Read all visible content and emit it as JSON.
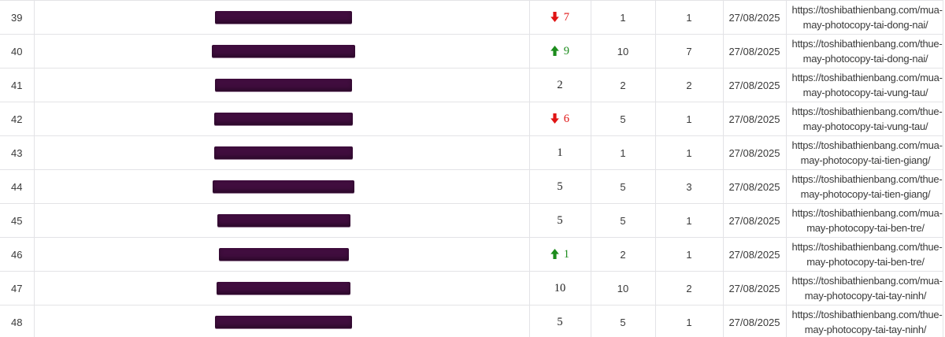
{
  "colors": {
    "up_green": "#1c8c1c",
    "down_red": "#e01313",
    "redaction_purple": "#400d3e",
    "grid_border": "#e3e3e6",
    "text": "#3a3a3a"
  },
  "table": {
    "rows": [
      {
        "num": "39",
        "change": {
          "dir": "down",
          "value": "7"
        },
        "pos_a": "1",
        "pos_b": "1",
        "date": "27/08/2025",
        "url_line1": "https://toshibathienbang.com/mua-",
        "url_line2": "may-photocopy-tai-dong-nai/",
        "redact_width": 174
      },
      {
        "num": "40",
        "change": {
          "dir": "up",
          "value": "9"
        },
        "pos_a": "10",
        "pos_b": "7",
        "date": "27/08/2025",
        "url_line1": "https://toshibathienbang.com/thue-",
        "url_line2": "may-photocopy-tai-dong-nai/",
        "redact_width": 182
      },
      {
        "num": "41",
        "change": {
          "dir": "none",
          "value": "2"
        },
        "pos_a": "2",
        "pos_b": "2",
        "date": "27/08/2025",
        "url_line1": "https://toshibathienbang.com/mua-",
        "url_line2": "may-photocopy-tai-vung-tau/",
        "redact_width": 174
      },
      {
        "num": "42",
        "change": {
          "dir": "down",
          "value": "6"
        },
        "pos_a": "5",
        "pos_b": "1",
        "date": "27/08/2025",
        "url_line1": "https://toshibathienbang.com/thue-",
        "url_line2": "may-photocopy-tai-vung-tau/",
        "redact_width": 176
      },
      {
        "num": "43",
        "change": {
          "dir": "none",
          "value": "1"
        },
        "pos_a": "1",
        "pos_b": "1",
        "date": "27/08/2025",
        "url_line1": "https://toshibathienbang.com/mua-",
        "url_line2": "may-photocopy-tai-tien-giang/",
        "redact_width": 176
      },
      {
        "num": "44",
        "change": {
          "dir": "none",
          "value": "5"
        },
        "pos_a": "5",
        "pos_b": "3",
        "date": "27/08/2025",
        "url_line1": "https://toshibathienbang.com/thue-",
        "url_line2": "may-photocopy-tai-tien-giang/",
        "redact_width": 180
      },
      {
        "num": "45",
        "change": {
          "dir": "none",
          "value": "5"
        },
        "pos_a": "5",
        "pos_b": "1",
        "date": "27/08/2025",
        "url_line1": "https://toshibathienbang.com/mua-",
        "url_line2": "may-photocopy-tai-ben-tre/",
        "redact_width": 169
      },
      {
        "num": "46",
        "change": {
          "dir": "up",
          "value": "1"
        },
        "pos_a": "2",
        "pos_b": "1",
        "date": "27/08/2025",
        "url_line1": "https://toshibathienbang.com/thue-",
        "url_line2": "may-photocopy-tai-ben-tre/",
        "redact_width": 165
      },
      {
        "num": "47",
        "change": {
          "dir": "none",
          "value": "10"
        },
        "pos_a": "10",
        "pos_b": "2",
        "date": "27/08/2025",
        "url_line1": "https://toshibathienbang.com/mua-",
        "url_line2": "may-photocopy-tai-tay-ninh/",
        "redact_width": 170
      },
      {
        "num": "48",
        "change": {
          "dir": "none",
          "value": "5"
        },
        "pos_a": "5",
        "pos_b": "1",
        "date": "27/08/2025",
        "url_line1": "https://toshibathienbang.com/thue-",
        "url_line2": "may-photocopy-tai-tay-ninh/",
        "redact_width": 174
      }
    ]
  }
}
